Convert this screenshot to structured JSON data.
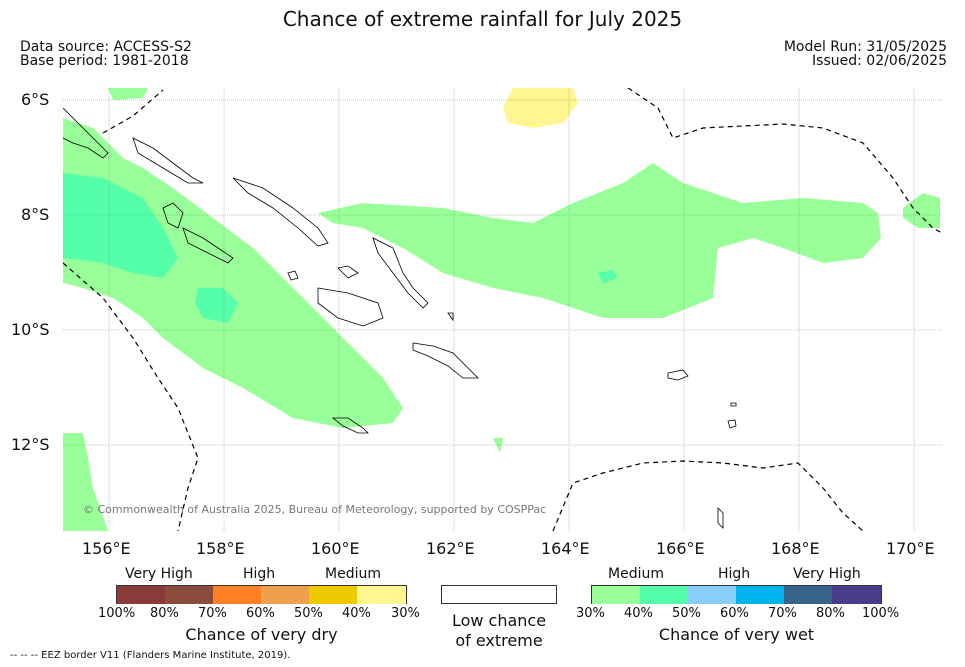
{
  "title": "Chance of extreme rainfall for July 2025",
  "meta": {
    "data_source": "Data source: ACCESS-S2",
    "base_period": "Base period: 1981-2018",
    "model_run": "Model Run: 31/05/2025",
    "issued": "Issued: 02/06/2025"
  },
  "map": {
    "lat_labels": [
      "6°S",
      "8°S",
      "10°S",
      "12°S"
    ],
    "lon_labels": [
      "156°E",
      "158°E",
      "160°E",
      "162°E",
      "164°E",
      "166°E",
      "168°E",
      "170°E"
    ],
    "copyright": "© Commonwealth of Australia 2025, Bureau of Meteorology, supported by COSPPac",
    "colors": {
      "medium_wet": "#99ff99",
      "high_wet_40_50": "#55ffaa",
      "medium_dry": "#fff68f",
      "coastline": "#000000",
      "eez": "#000000"
    }
  },
  "legend_dry": {
    "group_labels": [
      "Very High",
      "High",
      "Medium"
    ],
    "colors": [
      "#8b3a3a",
      "#8b4c3c",
      "#ff7f24",
      "#eea04c",
      "#eec900",
      "#fff68f"
    ],
    "ticks": [
      "100%",
      "80%",
      "70%",
      "60%",
      "50%",
      "40%",
      "30%"
    ],
    "title": "Chance of very dry"
  },
  "legend_low": {
    "line1": "Low chance",
    "line2": "of extreme",
    "color": "#ffffff"
  },
  "legend_wet": {
    "group_labels": [
      "Medium",
      "High",
      "Very High"
    ],
    "colors": [
      "#99ff99",
      "#55ffaa",
      "#87cefa",
      "#00b2ee",
      "#36648b",
      "#473c8b"
    ],
    "ticks": [
      "30%",
      "40%",
      "50%",
      "60%",
      "70%",
      "80%",
      "100%"
    ],
    "title": "Chance of very wet"
  },
  "footnote": "--  --  -- EEZ border V11 (Flanders Marine Institute, 2019)."
}
